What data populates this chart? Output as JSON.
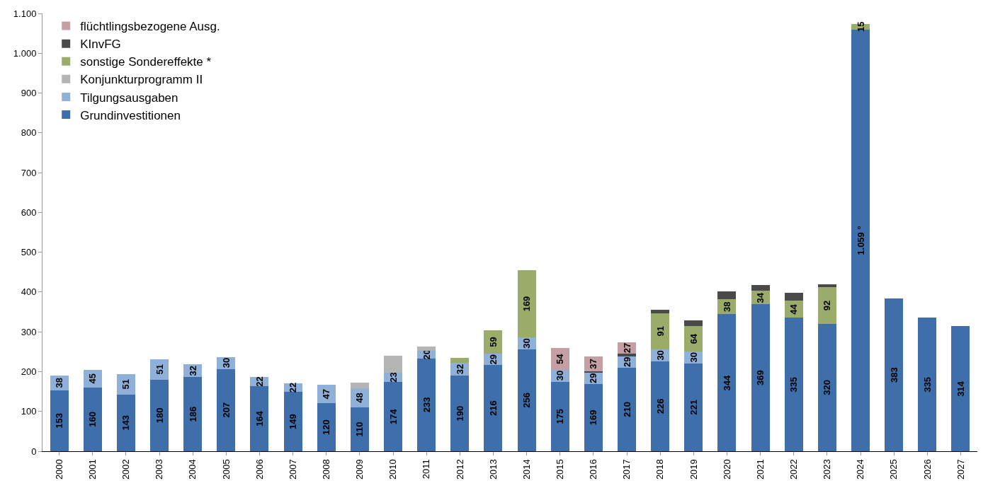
{
  "chart_data": {
    "type": "bar",
    "stacked": true,
    "legend": "top left",
    "categories": [
      "2000",
      "2001",
      "2002",
      "2003",
      "2004",
      "2005",
      "2006",
      "2007",
      "2008",
      "2009",
      "2010",
      "2011",
      "2012",
      "2013",
      "2014",
      "2015",
      "2016",
      "2017",
      "2018",
      "2019",
      "2020",
      "2021",
      "2022",
      "2023",
      "2024",
      "2025",
      "2026",
      "2027"
    ],
    "ylim": [
      0,
      1100
    ],
    "yticks": [
      0,
      100,
      200,
      300,
      400,
      500,
      600,
      700,
      800,
      900,
      {
        "value": 1000,
        "label": "1.000"
      },
      {
        "value": 1100,
        "label": "1.100"
      }
    ],
    "series": [
      {
        "name": "Grundinvestitionen",
        "color": "#3f6faa",
        "values": [
          153,
          160,
          143,
          180,
          186,
          207,
          164,
          149,
          120,
          110,
          174,
          233,
          190,
          216,
          256,
          175,
          169,
          210,
          226,
          221,
          344,
          369,
          335,
          320,
          1059,
          383,
          335,
          314
        ],
        "value_labels": [
          "153",
          "160",
          "143",
          "180",
          "186",
          "207",
          "164",
          "149",
          "120",
          "110",
          "174",
          "233",
          "190",
          "216",
          "256",
          "175",
          "169",
          "210",
          "226",
          "221",
          "344",
          "369",
          "335",
          "320",
          "1.059 °",
          "383",
          "335",
          "314"
        ]
      },
      {
        "name": "Tilgungsausgaben",
        "color": "#8fb0d8",
        "values": [
          38,
          45,
          51,
          51,
          32,
          30,
          22,
          22,
          47,
          48,
          23,
          20,
          32,
          29,
          30,
          30,
          29,
          29,
          30,
          30,
          null,
          null,
          null,
          null,
          null,
          null,
          null,
          null
        ],
        "value_labels": [
          "38",
          "45",
          "51",
          "51",
          "32",
          "30",
          "22",
          "22",
          "47",
          "48",
          "23",
          "20",
          "32",
          "29",
          "30",
          "30",
          "29",
          "29",
          "30",
          "30",
          null,
          null,
          null,
          null,
          null,
          null,
          null,
          null
        ]
      },
      {
        "name": "Konjunkturprogramm II",
        "color": "#b4b4b4",
        "values": [
          null,
          null,
          null,
          null,
          null,
          null,
          null,
          null,
          null,
          14,
          43,
          10,
          null,
          null,
          null,
          null,
          null,
          null,
          null,
          null,
          null,
          null,
          null,
          null,
          null,
          null,
          null,
          null
        ]
      },
      {
        "name": "sonstige Sondereffekte *",
        "color": "#9aab6a",
        "values": [
          null,
          null,
          null,
          null,
          null,
          null,
          null,
          null,
          null,
          null,
          null,
          null,
          12,
          59,
          169,
          null,
          null,
          null,
          91,
          64,
          38,
          34,
          44,
          92,
          15,
          null,
          null,
          null
        ],
        "value_labels": [
          null,
          null,
          null,
          null,
          null,
          null,
          null,
          null,
          null,
          null,
          null,
          null,
          null,
          "59",
          "169",
          null,
          null,
          null,
          "91",
          "64",
          "38",
          "34",
          "44",
          "92",
          "15",
          null,
          null,
          null
        ]
      },
      {
        "name": "KInvFG",
        "color": "#4a4a4a",
        "values": [
          null,
          null,
          null,
          null,
          null,
          null,
          null,
          null,
          null,
          null,
          null,
          null,
          null,
          null,
          null,
          null,
          3,
          7,
          9,
          14,
          19,
          14,
          19,
          7,
          null,
          null,
          null,
          null
        ]
      },
      {
        "name": "flüchtlingsbezogene Ausg.",
        "color": "#c4a0a4",
        "values": [
          null,
          null,
          null,
          null,
          null,
          null,
          null,
          null,
          null,
          null,
          null,
          null,
          null,
          null,
          null,
          54,
          37,
          27,
          null,
          null,
          null,
          null,
          null,
          null,
          null,
          null,
          null,
          null
        ],
        "value_labels": [
          null,
          null,
          null,
          null,
          null,
          null,
          null,
          null,
          null,
          null,
          null,
          null,
          null,
          null,
          null,
          "54",
          "37",
          "27",
          null,
          null,
          null,
          null,
          null,
          null,
          null,
          null,
          null,
          null
        ]
      }
    ]
  }
}
